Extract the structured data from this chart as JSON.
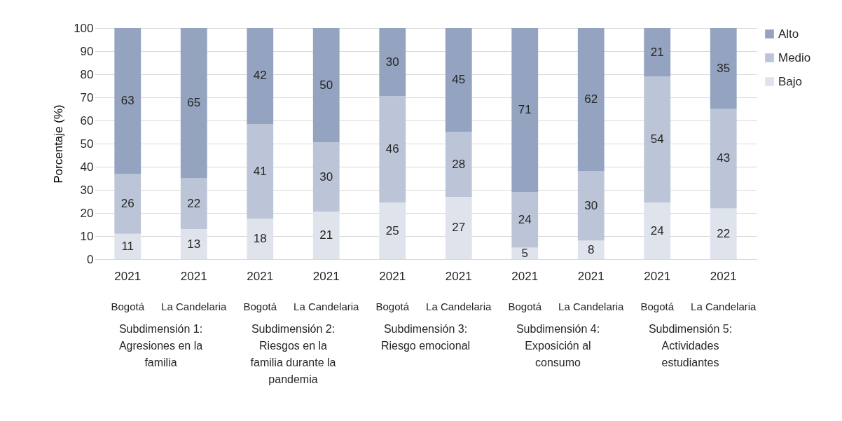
{
  "chart_data": {
    "type": "bar",
    "stacked": true,
    "ylabel": "Porcentaje (%)",
    "categories": [
      "2021",
      "2021",
      "2021",
      "2021",
      "2021",
      "2021",
      "2021",
      "2021",
      "2021",
      "2021"
    ],
    "series": [
      {
        "name": "Bajo",
        "color": "#dfe3ec",
        "values": [
          11,
          13,
          17.5,
          20.5,
          24.5,
          27,
          5,
          8,
          24.5,
          22
        ],
        "value_labels": [
          "11",
          "13",
          "18",
          "21",
          "25",
          "27",
          "5",
          "8",
          "24",
          "22"
        ]
      },
      {
        "name": "Medio",
        "color": "#bcc5d8",
        "values": [
          26,
          22,
          41,
          30,
          46,
          28,
          24,
          30,
          54.5,
          43
        ],
        "value_labels": [
          "26",
          "22",
          "41",
          "30",
          "46",
          "28",
          "24",
          "30",
          "54",
          "43"
        ]
      },
      {
        "name": "Alto",
        "color": "#94a3bf",
        "values": [
          63,
          65,
          41.5,
          49.5,
          29.5,
          45,
          71,
          62,
          21,
          35
        ],
        "value_labels": [
          "63",
          "65",
          "42",
          "50",
          "30",
          "45",
          "71",
          "62",
          "21",
          "35"
        ]
      }
    ],
    "annotations": [
      "Bogotá",
      "La Candelaria",
      "Bogotá",
      "La Candelaria",
      "Bogotá",
      "La Candelaria",
      "Bogotá",
      "La Candelaria",
      "Bogotá",
      "La Candelaria",
      "Subdimensión 1: Agresiones en la familia",
      "Subdimensión 2: Riesgos en la familia durante la pandemia",
      "Subdimensión 3: Riesgo emocional",
      "Subdimensión 4: Exposición al consumo",
      "Subdimensión 5: Actividades estudiantes"
    ],
    "ylim": [
      0,
      100
    ],
    "yticks": [
      0,
      10,
      20,
      30,
      40,
      50,
      60,
      70,
      80,
      90,
      100
    ],
    "grid": "y",
    "legend": "right"
  }
}
